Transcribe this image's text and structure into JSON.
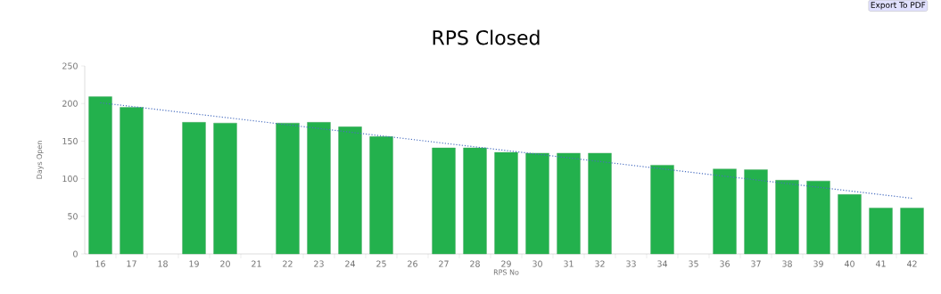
{
  "chart_data": {
    "type": "bar",
    "title": "RPS Closed",
    "xlabel": "RPS No",
    "ylabel": "Days Open",
    "annotations": [
      "Export To PDF"
    ],
    "x": [
      16,
      17,
      18,
      19,
      20,
      21,
      22,
      23,
      24,
      25,
      26,
      27,
      28,
      29,
      30,
      31,
      32,
      33,
      34,
      35,
      36,
      37,
      38,
      39,
      40,
      41,
      42
    ],
    "xlim": [
      15.5,
      42.5
    ],
    "xticks": [
      16,
      17,
      18,
      19,
      20,
      21,
      22,
      23,
      24,
      25,
      26,
      27,
      28,
      29,
      30,
      31,
      32,
      33,
      34,
      35,
      36,
      37,
      38,
      39,
      40,
      41,
      42
    ],
    "ylim": [
      0,
      250
    ],
    "yticks": [
      0,
      50,
      100,
      150,
      200,
      250
    ],
    "grid": false,
    "series": [
      {
        "color": "#23b14d",
        "values": [
          209,
          195,
          null,
          175,
          174,
          null,
          174,
          175,
          169,
          156,
          null,
          141,
          141,
          135,
          134,
          134,
          134,
          null,
          118,
          null,
          113,
          112,
          98,
          97,
          79,
          61,
          61
        ]
      },
      {
        "type": "line",
        "color": "#4a6fc0",
        "line_style": "dotted",
        "marker": "none",
        "x": [
          16,
          42
        ],
        "values": [
          201,
          74
        ]
      }
    ]
  }
}
